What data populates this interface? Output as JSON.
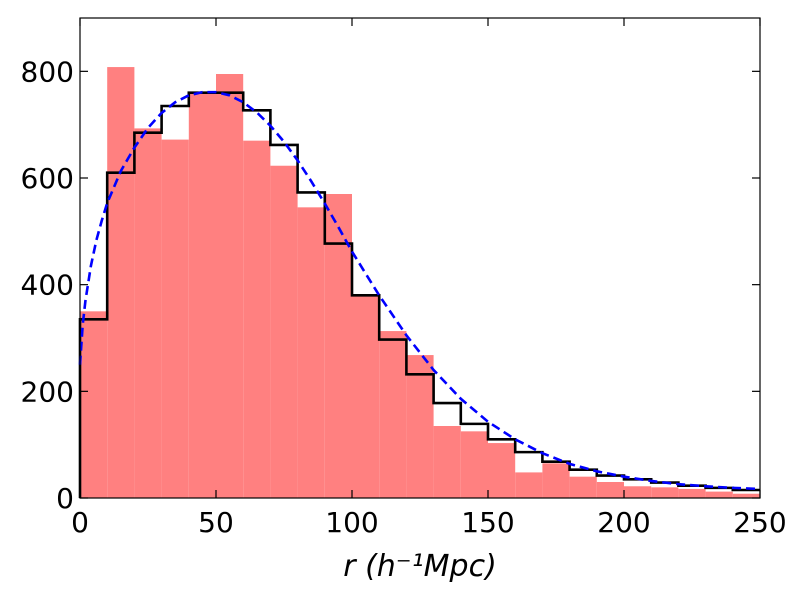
{
  "chart_data": {
    "type": "bar",
    "title": "",
    "xlabel": "r (h⁻¹Mpc)",
    "ylabel": "",
    "xlim": [
      0,
      250
    ],
    "ylim": [
      0,
      900
    ],
    "xticks": [
      0,
      50,
      100,
      150,
      200,
      250
    ],
    "yticks": [
      0,
      200,
      400,
      600,
      800
    ],
    "grid": false,
    "bin_edges": [
      0,
      10,
      20,
      30,
      40,
      50,
      60,
      70,
      80,
      90,
      100,
      110,
      120,
      130,
      140,
      150,
      160,
      170,
      180,
      190,
      200,
      210,
      220,
      230,
      240,
      250
    ],
    "series": [
      {
        "kind": "filled-histogram",
        "color": "#ff8080",
        "values": [
          350,
          808,
          693,
          672,
          760,
          795,
          670,
          623,
          545,
          570,
          380,
          313,
          268,
          135,
          125,
          103,
          48,
          65,
          40,
          30,
          22,
          20,
          17,
          12,
          8
        ]
      },
      {
        "kind": "step-histogram",
        "color": "#000000",
        "values": [
          335,
          610,
          685,
          735,
          760,
          760,
          727,
          662,
          573,
          477,
          380,
          297,
          232,
          178,
          139,
          110,
          86,
          68,
          53,
          42,
          35,
          29,
          23,
          19,
          15
        ]
      },
      {
        "kind": "dashed-curve",
        "color": "#0000ff",
        "x": [
          0,
          1,
          2,
          4,
          6,
          8,
          10,
          15,
          20,
          25,
          30,
          35,
          40,
          45,
          50,
          55,
          60,
          65,
          70,
          75,
          80,
          85,
          90,
          95,
          100,
          110,
          120,
          130,
          140,
          150,
          160,
          170,
          180,
          190,
          200,
          210,
          220,
          230,
          240,
          250
        ],
        "y": [
          250,
          325,
          370,
          435,
          483,
          520,
          553,
          613,
          657,
          694,
          722,
          742,
          755,
          761,
          761,
          755,
          742,
          723,
          698,
          668,
          633,
          594,
          552,
          508,
          462,
          380,
          305,
          240,
          186,
          143,
          110,
          84,
          64,
          50,
          40,
          32,
          26,
          22,
          19,
          17
        ]
      }
    ]
  }
}
